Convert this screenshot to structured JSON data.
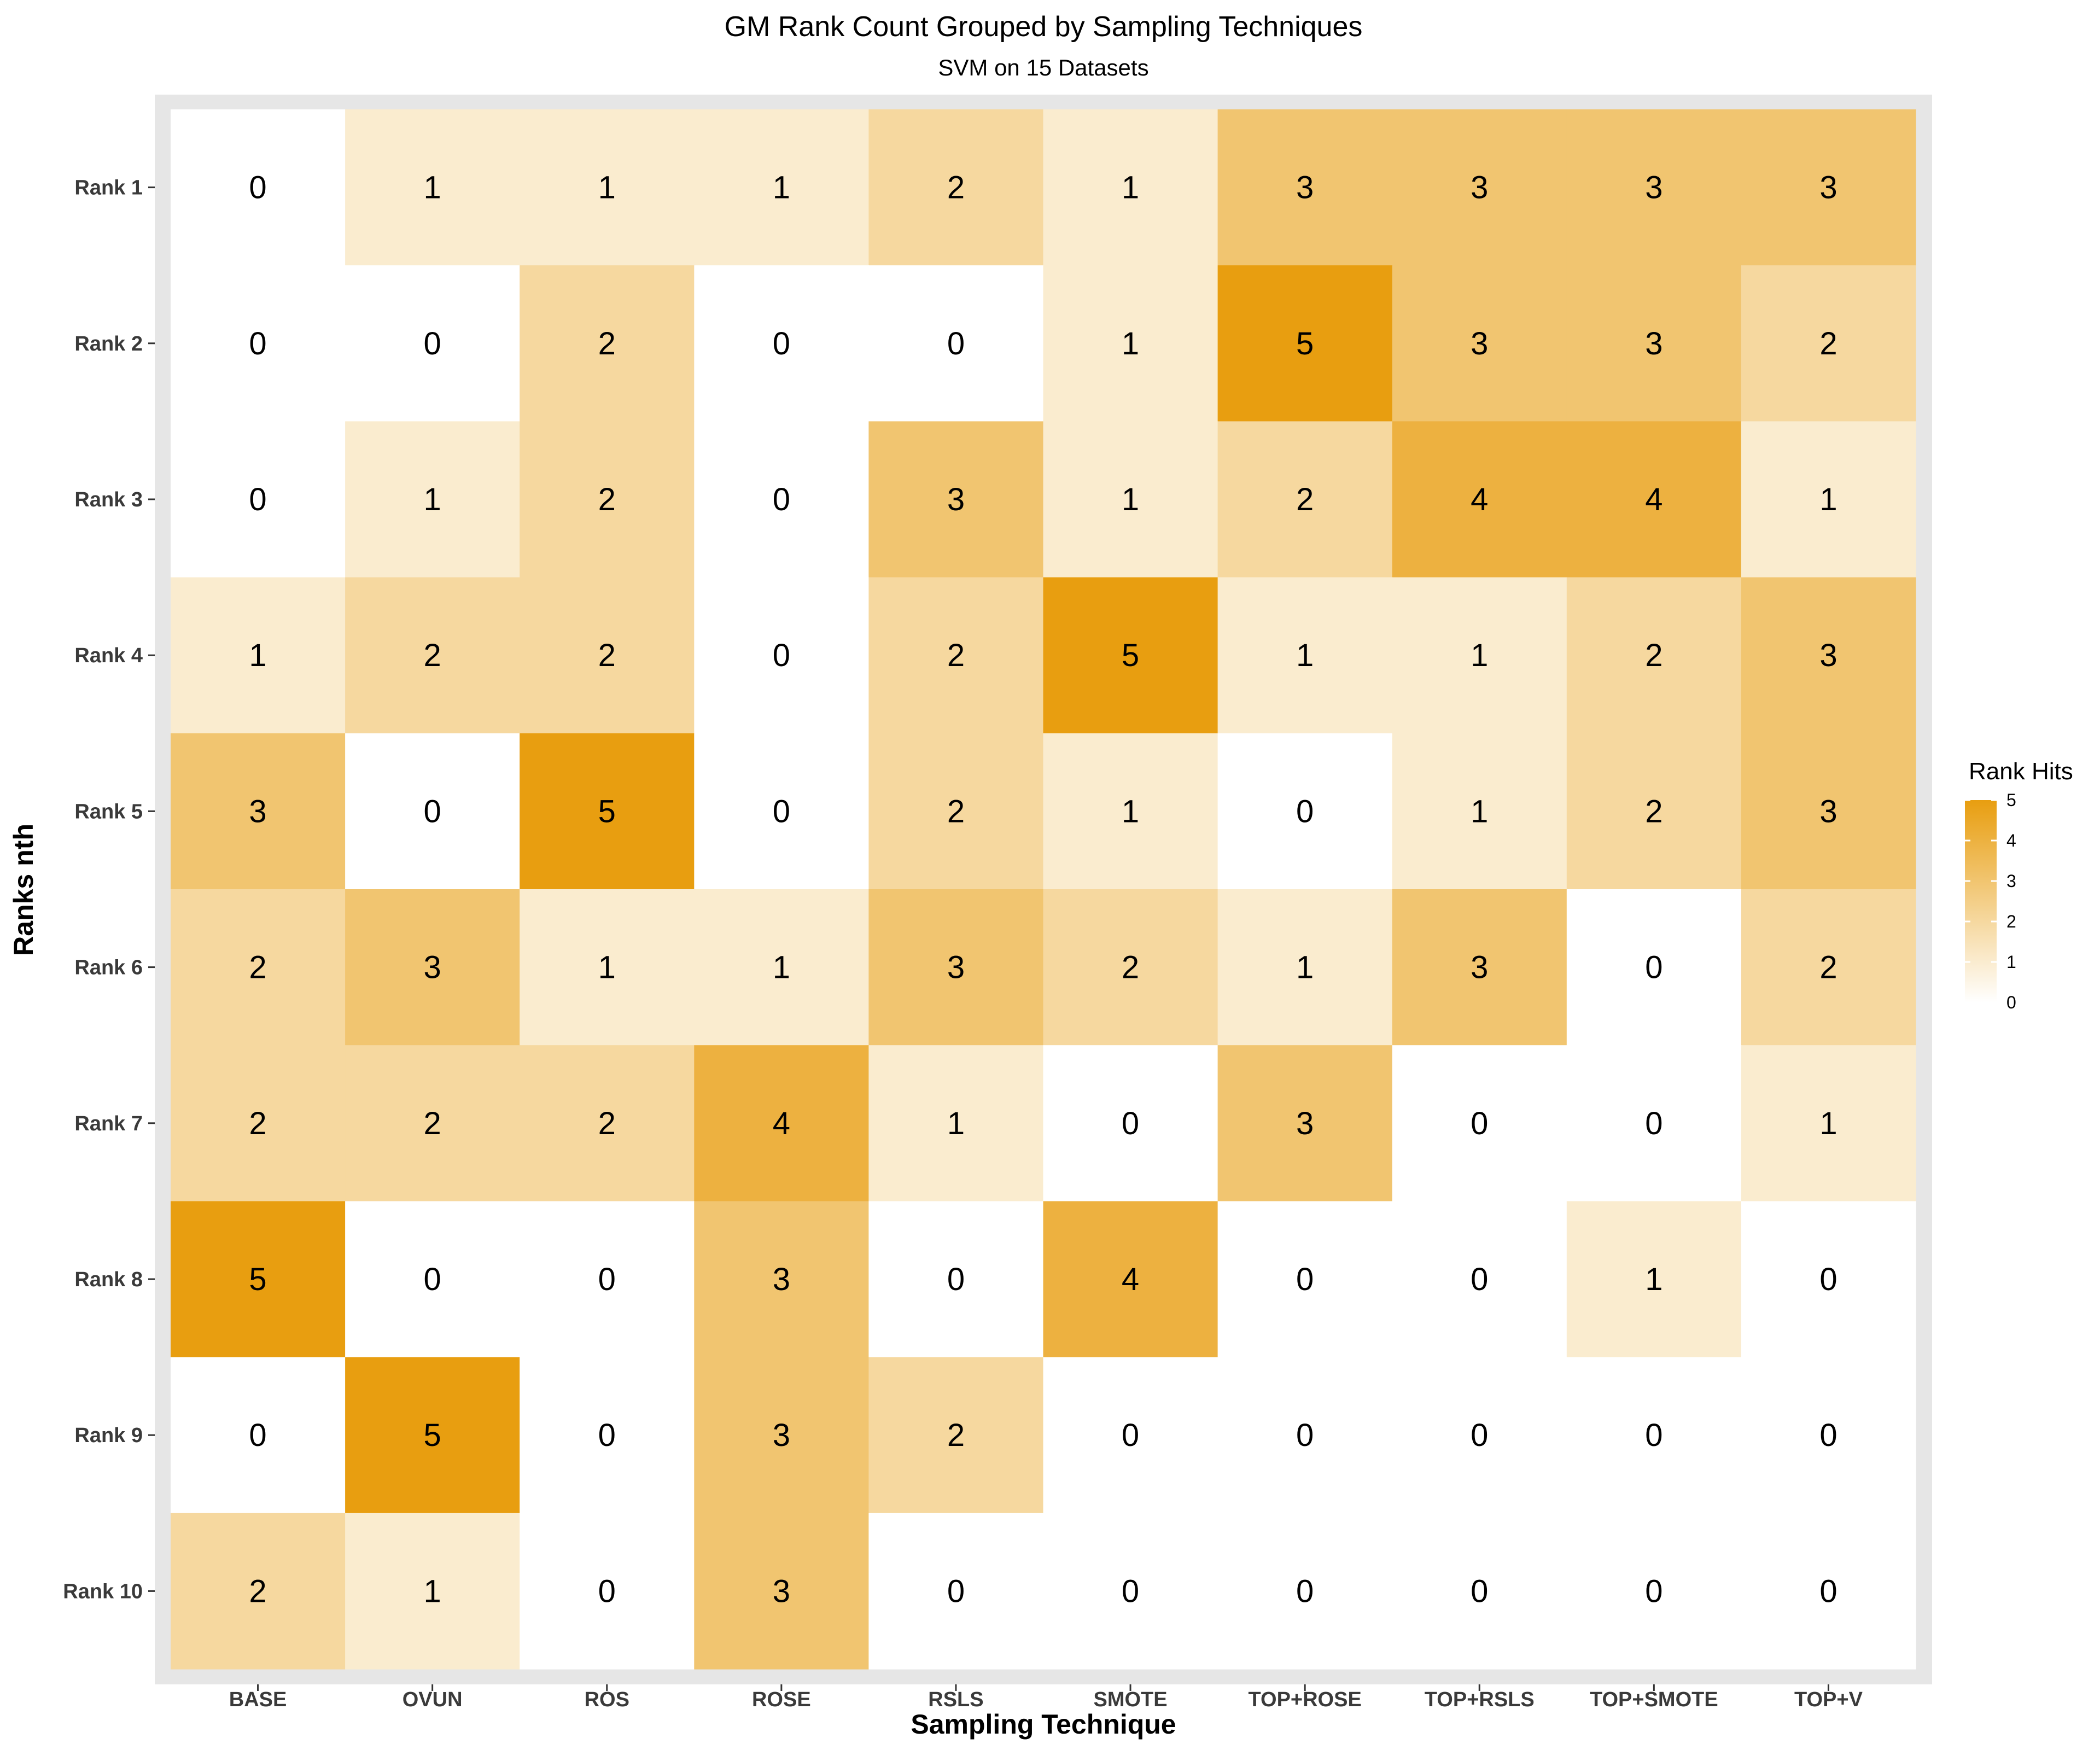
{
  "chart_data": {
    "type": "heatmap",
    "title": "GM Rank Count Grouped by Sampling Techniques",
    "subtitle": "SVM on 15 Datasets",
    "xlabel": "Sampling Technique",
    "ylabel": "Ranks nth",
    "x_categories": [
      "BASE",
      "OVUN",
      "ROS",
      "ROSE",
      "RSLS",
      "SMOTE",
      "TOP+ROSE",
      "TOP+RSLS",
      "TOP+SMOTE",
      "TOP+V"
    ],
    "y_categories": [
      "Rank 1",
      "Rank 2",
      "Rank 3",
      "Rank 4",
      "Rank 5",
      "Rank 6",
      "Rank 7",
      "Rank 8",
      "Rank 9",
      "Rank 10"
    ],
    "values": [
      [
        0,
        1,
        1,
        1,
        2,
        1,
        3,
        3,
        3,
        3
      ],
      [
        0,
        0,
        2,
        0,
        0,
        1,
        5,
        3,
        3,
        2
      ],
      [
        0,
        1,
        2,
        0,
        3,
        1,
        2,
        4,
        4,
        1
      ],
      [
        1,
        2,
        2,
        0,
        2,
        5,
        1,
        1,
        2,
        3
      ],
      [
        3,
        0,
        5,
        0,
        2,
        1,
        0,
        1,
        2,
        3
      ],
      [
        2,
        3,
        1,
        1,
        3,
        2,
        1,
        3,
        0,
        2
      ],
      [
        2,
        2,
        2,
        4,
        1,
        0,
        3,
        0,
        0,
        1
      ],
      [
        5,
        0,
        0,
        3,
        0,
        4,
        0,
        0,
        1,
        0
      ],
      [
        0,
        5,
        0,
        3,
        2,
        0,
        0,
        0,
        0,
        0
      ],
      [
        2,
        1,
        0,
        3,
        0,
        0,
        0,
        0,
        0,
        0
      ]
    ],
    "color_scale": {
      "low": "#ffffff",
      "high": "#e89e10",
      "range": [
        0,
        5
      ]
    },
    "legend": {
      "title": "Rank Hits",
      "ticks": [
        "0",
        "1",
        "2",
        "3",
        "4",
        "5"
      ],
      "position": "right"
    },
    "panel_background": "#e6e6e6"
  }
}
